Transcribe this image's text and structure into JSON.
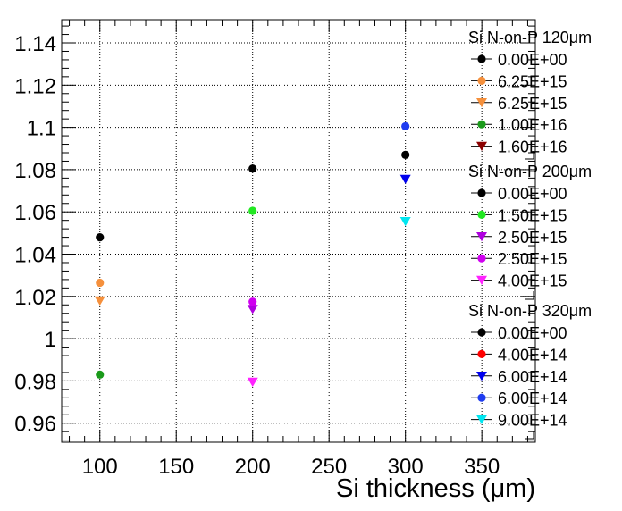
{
  "chart_data": {
    "type": "scatter",
    "title": "",
    "xlabel": "Si thickness (μm)",
    "ylabel": "",
    "xlim": [
      75,
      385
    ],
    "ylim": [
      0.951,
      1.151
    ],
    "x_ticks": [
      100,
      150,
      200,
      250,
      300,
      350
    ],
    "y_ticks": [
      0.96,
      0.98,
      1,
      1.02,
      1.04,
      1.06,
      1.08,
      1.1,
      1.12,
      1.14
    ],
    "x_tick_labels": [
      "100",
      "150",
      "200",
      "250",
      "300",
      "350"
    ],
    "y_tick_labels": [
      "0.96",
      "0.98",
      "1",
      "1.02",
      "1.04",
      "1.06",
      "1.08",
      "1.1",
      "1.12",
      "1.14"
    ],
    "grid": true,
    "legend_position": "right",
    "legend_groups": [
      {
        "title": "Si N-on-P 120μm",
        "series": [
          {
            "name": "0.00E+00",
            "color": "#000000",
            "marker": "circle",
            "points": [
              {
                "x": 100,
                "y": 1.048
              }
            ]
          },
          {
            "name": "6.25E+15",
            "color": "#f5903c",
            "marker": "circle",
            "points": [
              {
                "x": 100,
                "y": 1.0265
              }
            ]
          },
          {
            "name": "6.25E+15",
            "color": "#f5903c",
            "marker": "triangle-down",
            "points": [
              {
                "x": 100,
                "y": 1.018
              }
            ]
          },
          {
            "name": "1.00E+16",
            "color": "#1a9a1a",
            "marker": "circle",
            "points": [
              {
                "x": 100,
                "y": 0.983
              }
            ]
          },
          {
            "name": "1.60E+16",
            "color": "#8b0000",
            "marker": "triangle-down",
            "points": []
          }
        ]
      },
      {
        "title": "Si N-on-P 200μm",
        "series": [
          {
            "name": "0.00E+00",
            "color": "#000000",
            "marker": "circle",
            "points": [
              {
                "x": 200,
                "y": 1.0805
              }
            ]
          },
          {
            "name": "1.50E+15",
            "color": "#22e822",
            "marker": "circle",
            "points": [
              {
                "x": 200,
                "y": 1.0605
              }
            ]
          },
          {
            "name": "2.50E+15",
            "color": "#b000e0",
            "marker": "triangle-down",
            "points": [
              {
                "x": 200,
                "y": 1.014
              }
            ]
          },
          {
            "name": "2.50E+15",
            "color": "#d000f0",
            "marker": "circle",
            "points": [
              {
                "x": 200,
                "y": 1.0175
              }
            ]
          },
          {
            "name": "4.00E+15",
            "color": "#ff22ff",
            "marker": "triangle-down",
            "points": [
              {
                "x": 200,
                "y": 0.9795
              }
            ]
          }
        ]
      },
      {
        "title": "Si N-on-P 320μm",
        "series": [
          {
            "name": "0.00E+00",
            "color": "#000000",
            "marker": "circle",
            "points": [
              {
                "x": 300,
                "y": 1.087
              }
            ]
          },
          {
            "name": "4.00E+14",
            "color": "#ff0000",
            "marker": "circle",
            "points": []
          },
          {
            "name": "6.00E+14",
            "color": "#0000ee",
            "marker": "triangle-down",
            "points": [
              {
                "x": 300,
                "y": 1.0755
              }
            ]
          },
          {
            "name": "6.00E+14",
            "color": "#1f3cf0",
            "marker": "circle",
            "points": [
              {
                "x": 300,
                "y": 1.1005
              }
            ]
          },
          {
            "name": "9.00E+14",
            "color": "#00e6f0",
            "marker": "triangle-down",
            "points": [
              {
                "x": 300,
                "y": 1.0555
              }
            ]
          }
        ]
      }
    ]
  }
}
